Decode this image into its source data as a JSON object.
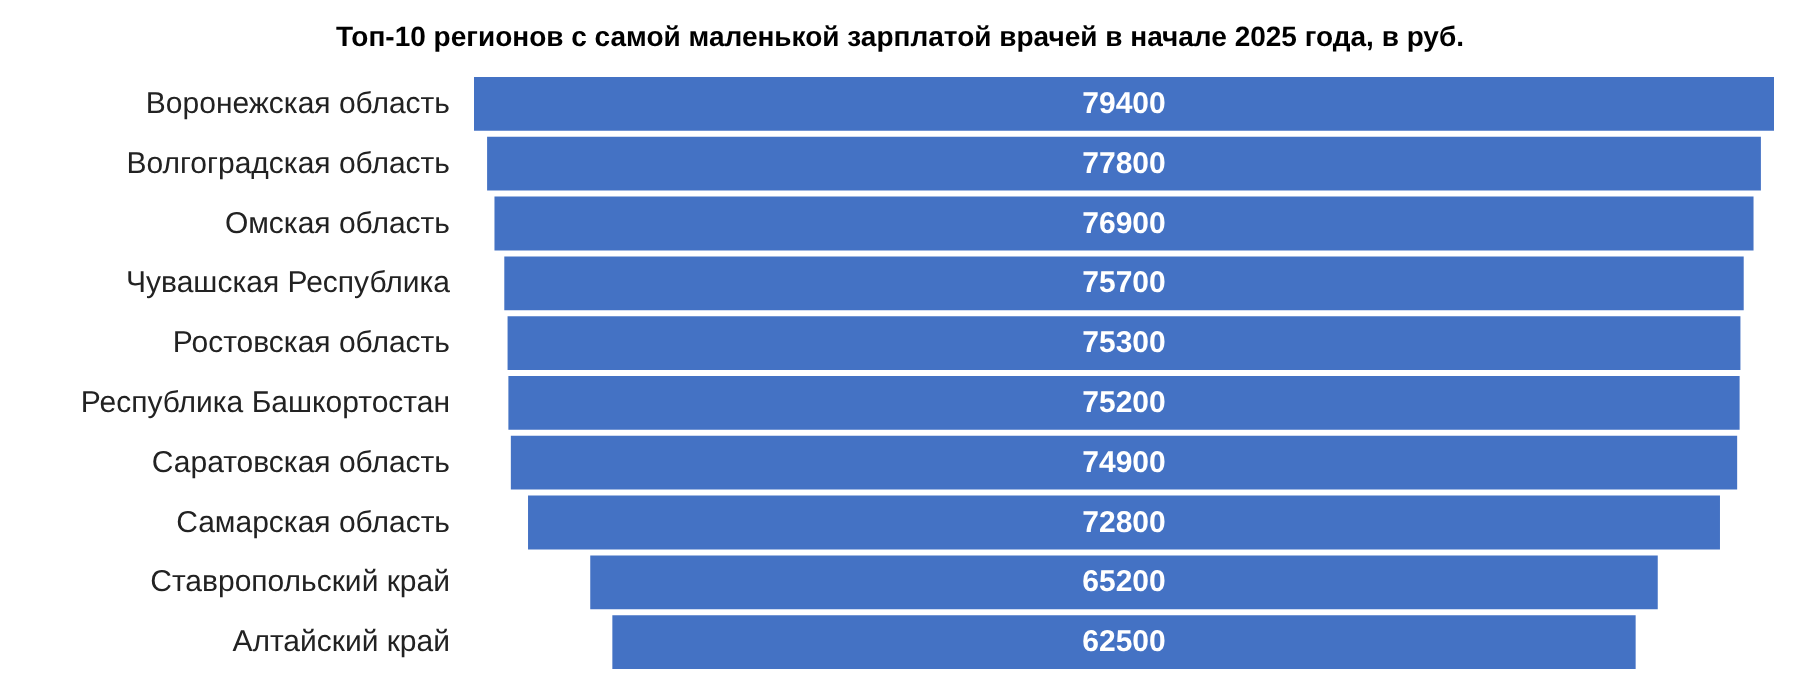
{
  "chart_data": {
    "type": "other",
    "title": "Топ-10 регионов с самой маленькой зарплатой врачей в начале 2025 года, в руб.",
    "categories": [
      "Воронежская область",
      "Волгоградская область",
      "Омская область",
      "Чувашская Республика",
      "Ростовская область",
      "Республика Башкортостан",
      "Саратовская область",
      "Самарская область",
      "Ставропольский край",
      "Алтайский край"
    ],
    "values": [
      79400,
      77800,
      76900,
      75700,
      75300,
      75200,
      74900,
      72800,
      65200,
      62500
    ],
    "color": "#4472c4",
    "data_labels": true
  }
}
